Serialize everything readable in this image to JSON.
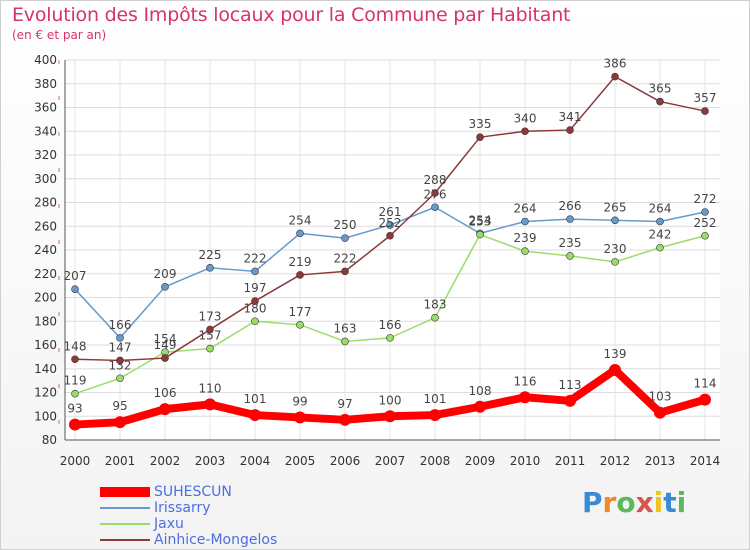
{
  "header": {
    "title": "Evolution des Impôts locaux pour la Commune par Habitant",
    "subtitle": "(en € et par an)"
  },
  "logo": {
    "letters": [
      "P",
      "r",
      "o",
      "x",
      "i",
      "t",
      "i"
    ],
    "colors": [
      "#3b8bd4",
      "#f08a24",
      "#5cb85c",
      "#d9534f",
      "#f0c419",
      "#3b8bd4",
      "#5cb85c"
    ]
  },
  "chart_data": {
    "type": "line",
    "x": [
      "2000",
      "2001",
      "2002",
      "2003",
      "2004",
      "2005",
      "2006",
      "2007",
      "2008",
      "2009",
      "2010",
      "2011",
      "2012",
      "2013",
      "2014"
    ],
    "yticks": [
      "80",
      "100",
      "120",
      "140",
      "160",
      "180",
      "200",
      "220",
      "240",
      "260",
      "280",
      "300",
      "320",
      "340",
      "360",
      "380",
      "400"
    ],
    "ylim": [
      80,
      400
    ],
    "grid": true,
    "legend_position": "bottom-left",
    "series": [
      {
        "name": "SUHESCUN",
        "color": "#ff0000",
        "labels": [
          "93",
          "95",
          "106",
          "110",
          "101",
          "99",
          "97",
          "100",
          "101",
          "108",
          "116",
          "113",
          "139",
          "103",
          "114"
        ],
        "values": [
          93,
          95,
          106,
          110,
          101,
          99,
          97,
          100,
          101,
          108,
          116,
          113,
          139,
          103,
          114
        ]
      },
      {
        "name": "Irissarry",
        "color": "#6699cc",
        "labels": [
          "207",
          "166",
          "209",
          "225",
          "222",
          "254",
          "250",
          "261",
          "276",
          "254",
          "264",
          "266",
          "265",
          "264",
          "272"
        ],
        "values": [
          207,
          166,
          209,
          225,
          222,
          254,
          250,
          261,
          276,
          254,
          264,
          266,
          265,
          264,
          272
        ]
      },
      {
        "name": "Jaxu",
        "color": "#99dd66",
        "labels": [
          "119",
          "132",
          "154",
          "157",
          "180",
          "177",
          "163",
          "166",
          "183",
          "253",
          "239",
          "235",
          "230",
          "242",
          "252"
        ],
        "values": [
          119,
          132,
          154,
          157,
          180,
          177,
          163,
          166,
          183,
          253,
          239,
          235,
          230,
          242,
          252
        ]
      },
      {
        "name": "Ainhice-Mongelos",
        "color": "#8b3a3a",
        "labels": [
          "148",
          "147",
          "149",
          "173",
          "197",
          "219",
          "222",
          "252",
          "288",
          "335",
          "340",
          "341",
          "386",
          "365",
          "357"
        ],
        "values": [
          148,
          147,
          149,
          173,
          197,
          219,
          222,
          252,
          288,
          335,
          340,
          341,
          386,
          365,
          357
        ]
      }
    ]
  }
}
